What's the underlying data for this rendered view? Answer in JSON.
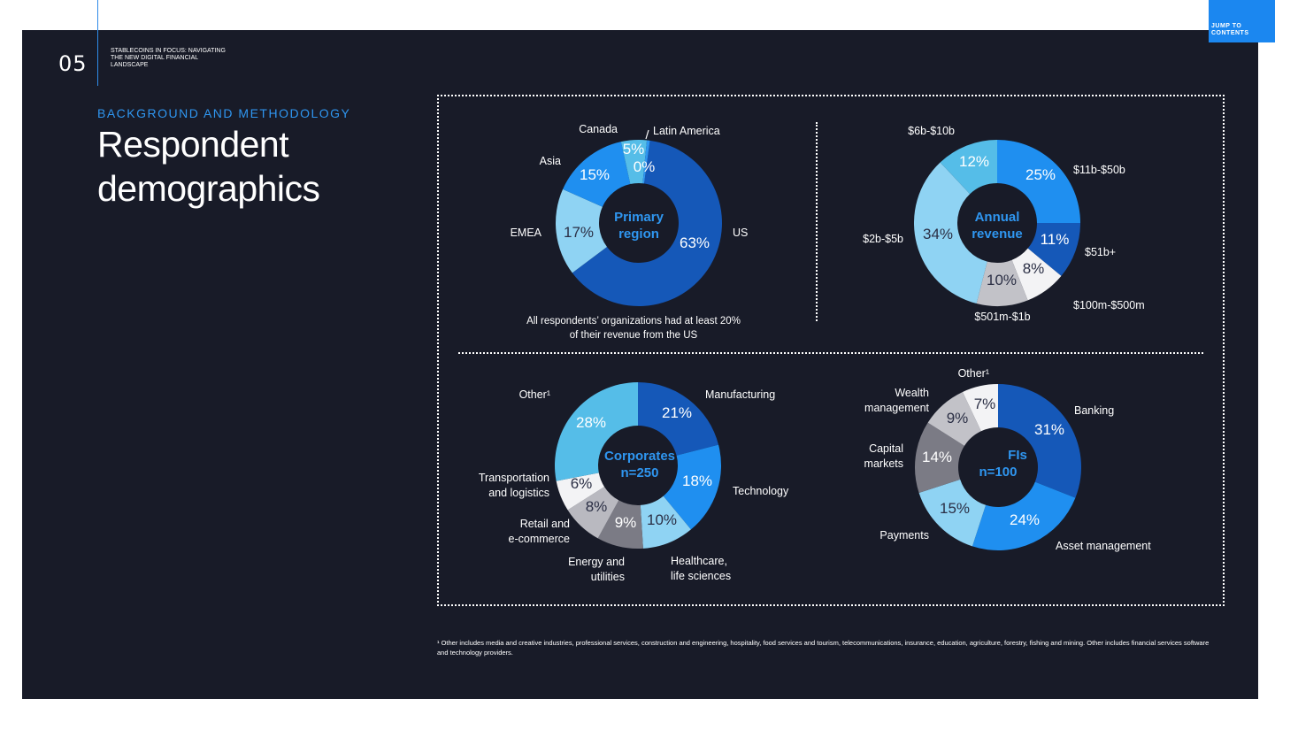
{
  "header": {
    "page_number": "05",
    "report_title": "STABLECOINS IN FOCUS: NAVIGATING THE NEW DIGITAL FINANCIAL LANDSCAPE",
    "jump_label": "JUMP TO CONTENTS"
  },
  "section_label": "BACKGROUND AND METHODOLOGY",
  "heading": {
    "line1": "Respondent",
    "line2": "demographics"
  },
  "colors": {
    "background": "#181b28",
    "accent": "#1b87f0",
    "center_label": "#2f96f0"
  },
  "chart_data": [
    {
      "type": "pie",
      "id": "region",
      "center_label": [
        "Primary",
        "region"
      ],
      "slices": [
        {
          "label": "US",
          "value": 63,
          "display": "63%",
          "color": "#1558b8"
        },
        {
          "label": "EMEA",
          "value": 17,
          "display": "17%",
          "color": "#8fd3f3"
        },
        {
          "label": "Asia",
          "value": 15,
          "display": "15%",
          "color": "#1f8ff0"
        },
        {
          "label": "Canada",
          "value": 5,
          "display": "5%",
          "color": "#55bde8"
        },
        {
          "label": "Latin America",
          "value": 0.6,
          "display": "0%",
          "color": "#2f96f0"
        }
      ],
      "note": [
        "All respondents’ organizations had at least 20%",
        "of their revenue from the US"
      ]
    },
    {
      "type": "pie",
      "id": "revenue",
      "center_label": [
        "Annual",
        "revenue"
      ],
      "slices": [
        {
          "label": "$11b-$50b",
          "value": 25,
          "display": "25%",
          "color": "#1f8ff0"
        },
        {
          "label": "$51b+",
          "value": 11,
          "display": "11%",
          "color": "#1558b8"
        },
        {
          "label": "$100m-$500m",
          "value": 8,
          "display": "8%",
          "color": "#f3f3f5"
        },
        {
          "label": "$501m-$1b",
          "value": 10,
          "display": "10%",
          "color": "#c2c2c8"
        },
        {
          "label": "$2b-$5b",
          "value": 34,
          "display": "34%",
          "color": "#8fd3f3"
        },
        {
          "label": "$6b-$10b",
          "value": 12,
          "display": "12%",
          "color": "#55bde8"
        }
      ]
    },
    {
      "type": "pie",
      "id": "corporates",
      "center_label": [
        "Corporates",
        "n=250"
      ],
      "slices": [
        {
          "label": "Manufacturing",
          "value": 21,
          "display": "21%",
          "color": "#1558b8"
        },
        {
          "label": "Technology",
          "value": 18,
          "display": "18%",
          "color": "#1f8ff0"
        },
        {
          "label": "Healthcare, life sciences",
          "value": 10,
          "display": "10%",
          "color": "#8fd3f3"
        },
        {
          "label": "Energy and utilities",
          "value": 9,
          "display": "9%",
          "color": "#7b7b85"
        },
        {
          "label": "Retail and e-commerce",
          "value": 8,
          "display": "8%",
          "color": "#b9b9c0"
        },
        {
          "label": "Transportation and logistics",
          "value": 6,
          "display": "6%",
          "color": "#f3f3f5"
        },
        {
          "label": "Other¹",
          "value": 28,
          "display": "28%",
          "color": "#55bde8"
        }
      ]
    },
    {
      "type": "pie",
      "id": "fis",
      "center_label": [
        "FIs",
        "n=100"
      ],
      "slices": [
        {
          "label": "Banking",
          "value": 31,
          "display": "31%",
          "color": "#1558b8"
        },
        {
          "label": "Asset management",
          "value": 24,
          "display": "24%",
          "color": "#1f8ff0"
        },
        {
          "label": "Payments",
          "value": 15,
          "display": "15%",
          "color": "#8fd3f3"
        },
        {
          "label": "Capital markets",
          "value": 14,
          "display": "14%",
          "color": "#7b7b85"
        },
        {
          "label": "Wealth management",
          "value": 9,
          "display": "9%",
          "color": "#c2c2c8"
        },
        {
          "label": "Other¹",
          "value": 7,
          "display": "7%",
          "color": "#f3f3f5"
        }
      ]
    }
  ],
  "footnote": "¹ Other includes media and creative industries, professional services, construction and engineering, hospitality, food services and tourism, telecommunications, insurance, education, agriculture, forestry, fishing and mining. Other includes financial services software and technology providers."
}
